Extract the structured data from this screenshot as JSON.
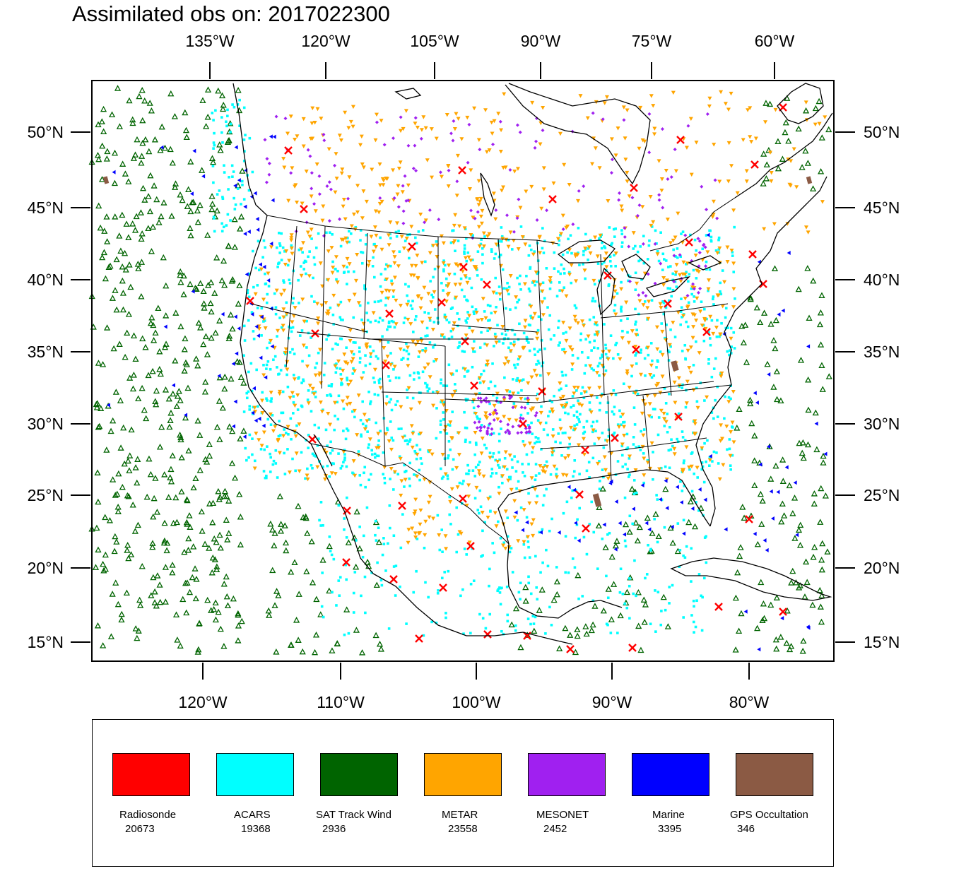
{
  "title": "Assimilated obs on: 2017022300",
  "axes": {
    "top_lon_labels": [
      "135°W",
      "120°W",
      "105°W",
      "90°W",
      "75°W",
      "60°W"
    ],
    "bottom_lon_labels": [
      "120°W",
      "110°W",
      "100°W",
      "90°W",
      "80°W"
    ],
    "lat_labels": [
      "50°N",
      "45°N",
      "40°N",
      "35°N",
      "30°N",
      "25°N",
      "20°N",
      "15°N"
    ]
  },
  "legend": [
    {
      "name": "Radiosonde",
      "count": "20673",
      "color": "#ff0000"
    },
    {
      "name": "ACARS",
      "count": "19368",
      "color": "#00ffff"
    },
    {
      "name": "SAT Track Wind",
      "count": "2936",
      "color": "#006400"
    },
    {
      "name": "METAR",
      "count": "23558",
      "color": "#ffa500"
    },
    {
      "name": "MESONET",
      "count": "2452",
      "color": "#a020f0"
    },
    {
      "name": "Marine",
      "count": "3395",
      "color": "#0000ff"
    },
    {
      "name": "GPS Occultation",
      "count": "346",
      "color": "#8b5a44"
    }
  ]
}
